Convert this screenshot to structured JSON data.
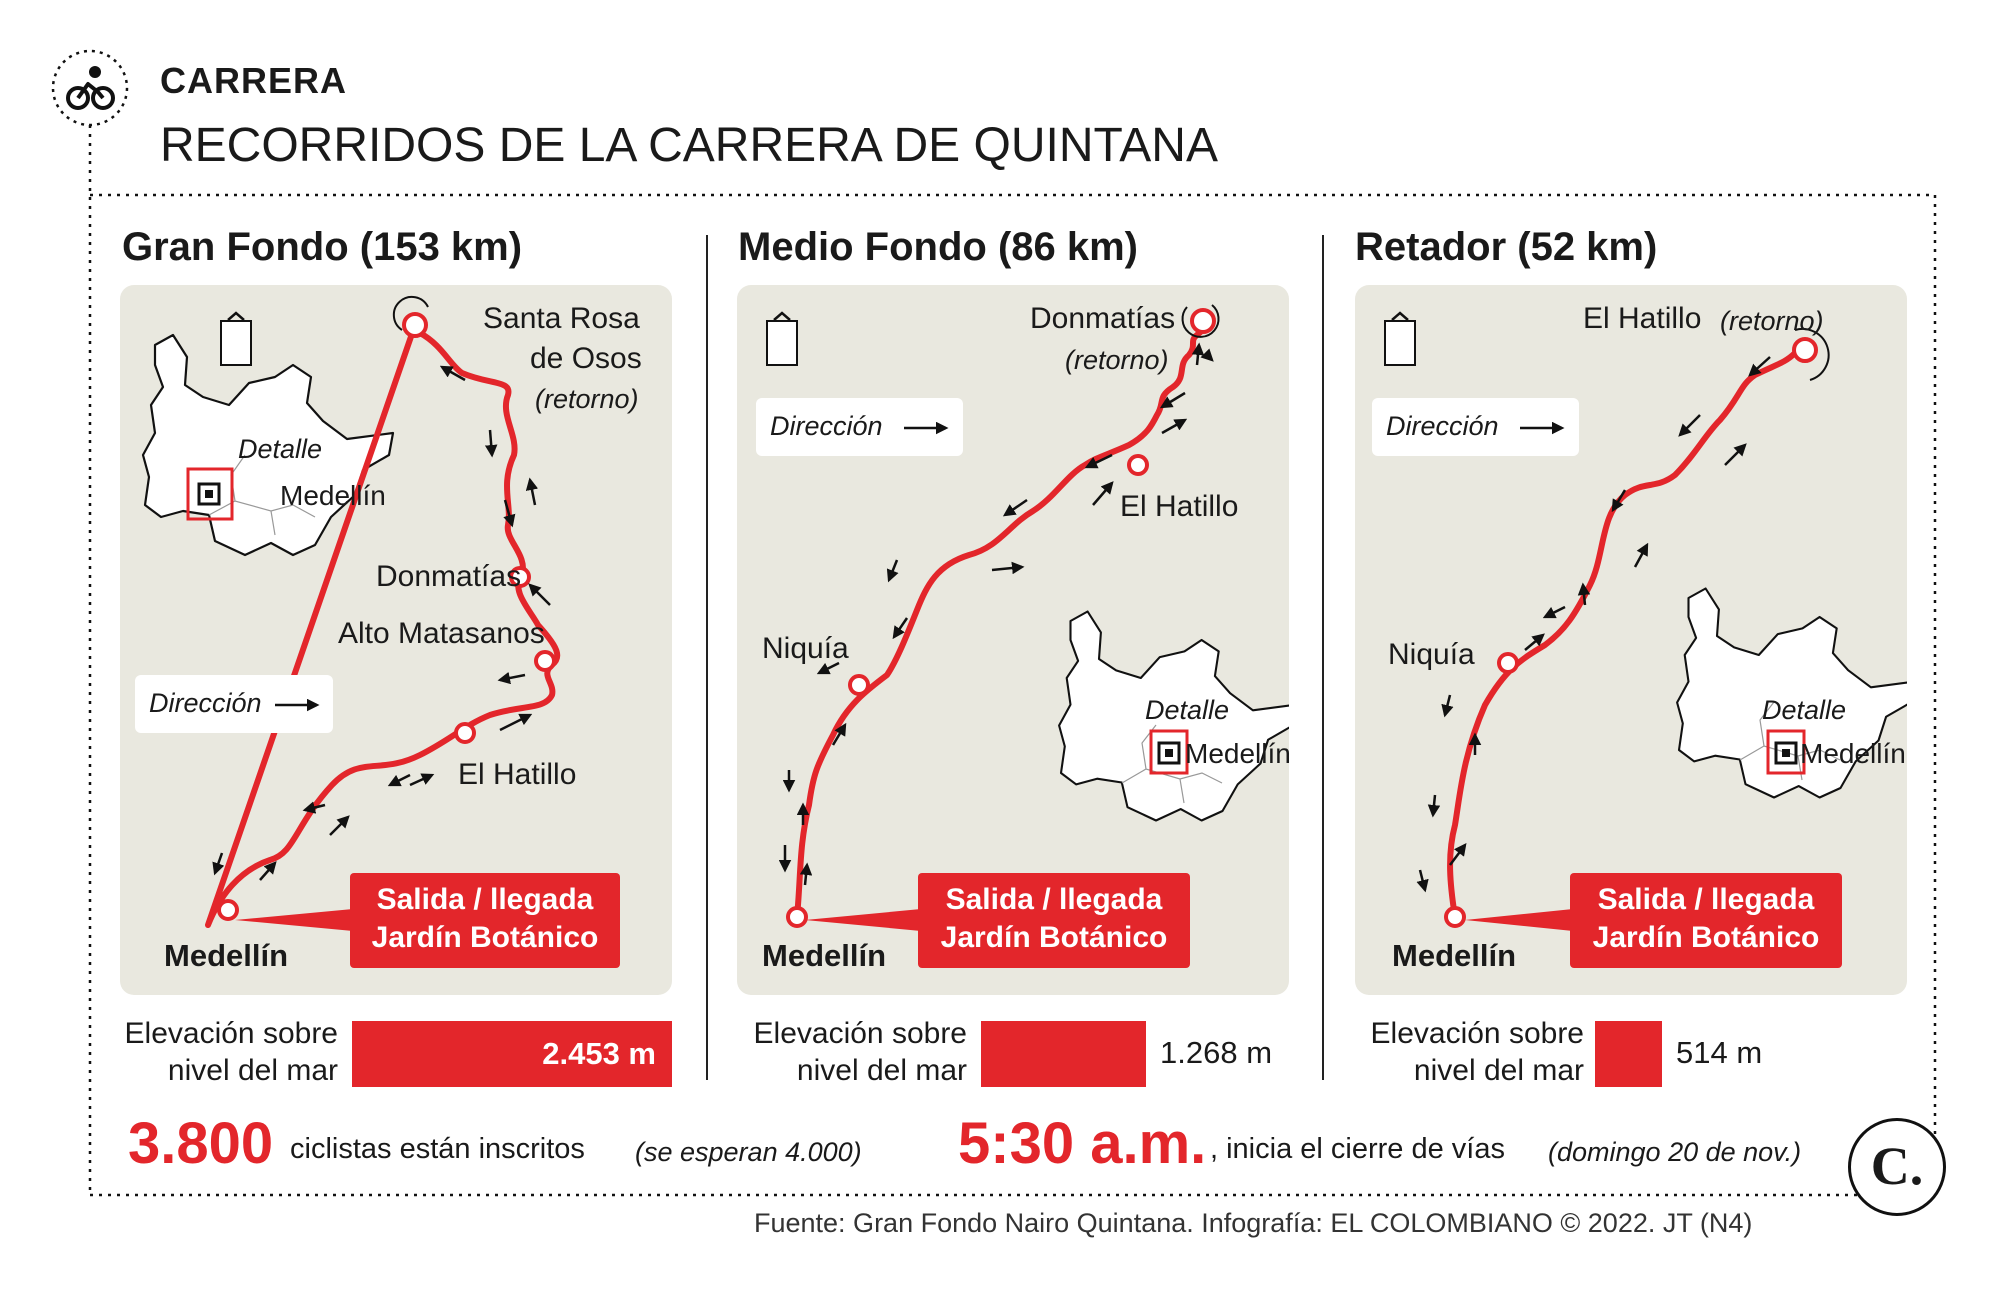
{
  "header": {
    "tag": "CARRERA",
    "title": "RECORRIDOS DE LA CARRERA DE QUINTANA",
    "icon": "cyclist-icon"
  },
  "panels": [
    {
      "title": "Gran Fondo (153 km)",
      "labels": {
        "turn_line1": "Santa Rosa",
        "turn_line2": "de Osos",
        "turn_note": "(retorno)",
        "stop_a": "Donmatías",
        "stop_b": "Alto Matasanos",
        "stop_c": "El Hatillo",
        "direction": "Dirección",
        "detail": "Detalle",
        "detail_city": "Medellín",
        "start": "Medellín",
        "start_line1": "Salida / llegada",
        "start_line2": "Jardín Botánico",
        "north": "N"
      },
      "elevation": {
        "label_line1": "Elevación sobre",
        "label_line2": "nivel del mar",
        "value": "2.453 m",
        "meters": 2453
      }
    },
    {
      "title": "Medio Fondo (86 km)",
      "labels": {
        "turn_line1": "Donmatías",
        "turn_note": "(retorno)",
        "stop_a": "El Hatillo",
        "stop_b": "Niquía",
        "direction": "Dirección",
        "detail": "Detalle",
        "detail_city": "Medellín",
        "start": "Medellín",
        "start_line1": "Salida / llegada",
        "start_line2": "Jardín Botánico",
        "north": "N"
      },
      "elevation": {
        "label_line1": "Elevación sobre",
        "label_line2": "nivel del mar",
        "value": "1.268 m",
        "meters": 1268
      }
    },
    {
      "title": "Retador (52 km)",
      "labels": {
        "turn_line1": "El Hatillo",
        "turn_note": "(retorno)",
        "stop_a": "Niquía",
        "direction": "Dirección",
        "detail": "Detalle",
        "detail_city": "Medellín",
        "start": "Medellín",
        "start_line1": "Salida / llegada",
        "start_line2": "Jardín Botánico",
        "north": "N"
      },
      "elevation": {
        "label_line1": "Elevación sobre",
        "label_line2": "nivel del mar",
        "value": "514 m",
        "meters": 514
      }
    }
  ],
  "footer": {
    "riders_big": "3.800",
    "riders_text": "ciclistas están inscritos",
    "riders_note": "(se esperan 4.000)",
    "time_big": "5:30 a.m.",
    "time_text": ", inicia el cierre de vías",
    "time_note": "(domingo 20 de nov.)",
    "logo_letter": "C."
  },
  "source": "Fuente: Gran Fondo Nairo Quintana. Infografía: EL COLOMBIANO © 2022. JT (N4)",
  "colors": {
    "accent": "#e3262b",
    "map_bg": "#e9e8df",
    "text": "#1a1a1a"
  }
}
